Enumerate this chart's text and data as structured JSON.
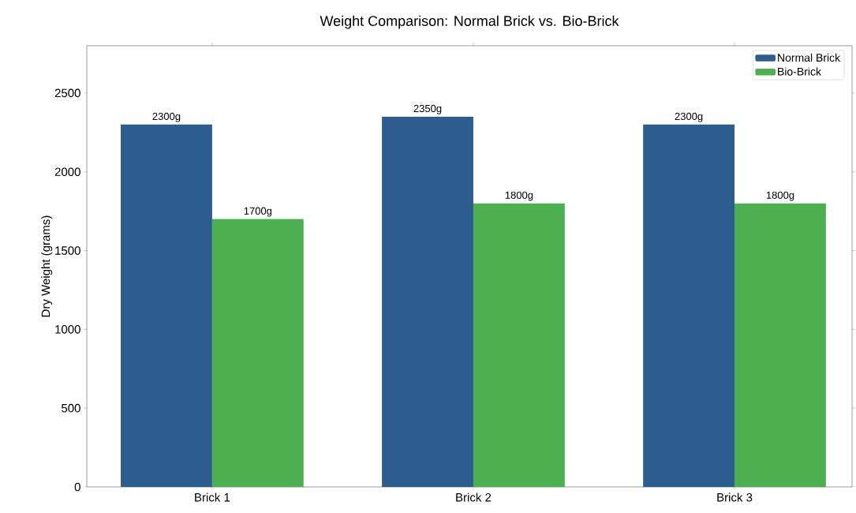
{
  "chart_data": {
    "type": "bar",
    "title": "Weight Comparison: Normal Brick vs. Bio-Brick",
    "ylabel": "Dry Weight (grams)",
    "categories": [
      "Brick 1",
      "Brick 2",
      "Brick 3"
    ],
    "series": [
      {
        "name": "Normal Brick",
        "color": "#2c5d8e",
        "values": [
          2300,
          2350,
          2300
        ],
        "value_labels": [
          "2300g",
          "2350g",
          "2300g"
        ]
      },
      {
        "name": "Bio-Brick",
        "color": "#4caf50",
        "values": [
          1700,
          1800,
          1800
        ],
        "value_labels": [
          "1700g",
          "1800g",
          "1800g"
        ]
      }
    ],
    "ylim": [
      0,
      2800
    ],
    "yticks": [
      0,
      500,
      1000,
      1500,
      2000,
      2500
    ],
    "legend": "top right"
  }
}
